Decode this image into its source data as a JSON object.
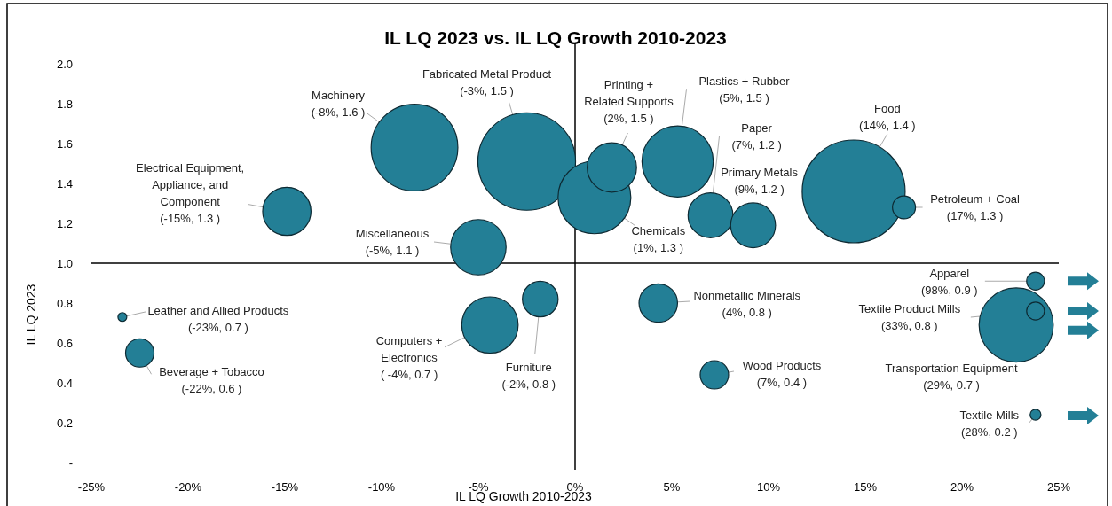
{
  "chart_data": {
    "type": "bubble",
    "title": "IL LQ 2023 vs. IL LQ Growth 2010-2023",
    "xlabel": "IL LQ Growth 2010-2023",
    "ylabel": "IL LQ 2023",
    "xlim": [
      -25,
      25
    ],
    "ylim": [
      0,
      2
    ],
    "xticks": [
      {
        "value": -25,
        "label": "-25%"
      },
      {
        "value": -20,
        "label": "-20%"
      },
      {
        "value": -15,
        "label": "-15%"
      },
      {
        "value": -10,
        "label": "-10%"
      },
      {
        "value": -5,
        "label": "-5%"
      },
      {
        "value": 0,
        "label": "0%"
      },
      {
        "value": 5,
        "label": "5%"
      },
      {
        "value": 10,
        "label": "10%"
      },
      {
        "value": 15,
        "label": "15%"
      },
      {
        "value": 20,
        "label": "20%"
      },
      {
        "value": 25,
        "label": "25%"
      }
    ],
    "yticks": [
      {
        "value": 0,
        "label": "-"
      },
      {
        "value": 0.2,
        "label": "0.2"
      },
      {
        "value": 0.4,
        "label": "0.4"
      },
      {
        "value": 0.6,
        "label": "0.6"
      },
      {
        "value": 0.8,
        "label": "0.8"
      },
      {
        "value": 1,
        "label": "1.0"
      },
      {
        "value": 1.2,
        "label": "1.2"
      },
      {
        "value": 1.4,
        "label": "1.4"
      },
      {
        "value": 1.6,
        "label": "1.6"
      },
      {
        "value": 1.8,
        "label": "1.8"
      },
      {
        "value": 2,
        "label": "2.0"
      }
    ],
    "grid": false,
    "series": [
      {
        "color": "#237f96",
        "x": [
          -23.4,
          -22.5,
          -14.9,
          -8.3,
          -2.5,
          -5.0,
          -4.4,
          -1.8,
          1.0,
          1.9,
          5.3,
          7.0,
          9.2,
          14.4,
          17.0,
          4.3,
          7.2,
          23.8,
          23.8,
          22.8,
          23.8
        ],
        "values": [
          0.73,
          0.55,
          1.26,
          1.58,
          1.51,
          1.08,
          0.69,
          0.82,
          1.33,
          1.48,
          1.51,
          1.24,
          1.19,
          1.36,
          1.28,
          0.8,
          0.44,
          0.91,
          0.76,
          0.69,
          0.24
        ],
        "sizes": [
          0.0074,
          0.076,
          0.22,
          0.71,
          0.9,
          0.29,
          0.3,
          0.12,
          0.5,
          0.23,
          0.48,
          0.19,
          0.19,
          1,
          0.05,
          0.14,
          0.076,
          0.03,
          0.03,
          0.52,
          0.011
        ]
      }
    ],
    "ref_lines": [
      {
        "axis": "x",
        "value": 0,
        "color": "#000000"
      },
      {
        "axis": "y",
        "value": 1,
        "color": "#000000"
      }
    ],
    "annotations": [
      {
        "text": "Leather and Allied Products\n(-23%, 0.7 )",
        "x": -23.4,
        "y": 0.73
      },
      {
        "text": "Beverage + Tobacco\n(-22%, 0.6 )",
        "x": -22.5,
        "y": 0.55
      },
      {
        "text": "Electrical Equipment,\nAppliance, and\nComponent\n(-15%, 1.3 )",
        "x": -14.9,
        "y": 1.26
      },
      {
        "text": "Machinery\n(-8%, 1.6 )",
        "x": -8.3,
        "y": 1.58
      },
      {
        "text": "Fabricated Metal Product\n(-3%, 1.5 )",
        "x": -2.5,
        "y": 1.51
      },
      {
        "text": "Miscellaneous\n(-5%, 1.1 )",
        "x": -5.0,
        "y": 1.08
      },
      {
        "text": "Computers +\nElectronics\n( -4%, 0.7 )",
        "x": -4.4,
        "y": 0.69
      },
      {
        "text": "Furniture\n(-2%, 0.8 )",
        "x": -1.8,
        "y": 0.82
      },
      {
        "text": "Chemicals\n(1%, 1.3 )",
        "x": 1.0,
        "y": 1.33
      },
      {
        "text": "Printing +\nRelated Supports\n(2%, 1.5 )",
        "x": 1.9,
        "y": 1.48
      },
      {
        "text": "Plastics + Rubber\n(5%, 1.5 )",
        "x": 5.3,
        "y": 1.51
      },
      {
        "text": "Paper\n(7%, 1.2 )",
        "x": 7.0,
        "y": 1.24
      },
      {
        "text": "Primary Metals\n(9%, 1.2 )",
        "x": 9.2,
        "y": 1.19
      },
      {
        "text": "Food\n(14%, 1.4 )",
        "x": 14.4,
        "y": 1.36
      },
      {
        "text": "Petroleum + Coal\n(17%, 1.3 )",
        "x": 17.0,
        "y": 1.28
      },
      {
        "text": "Nonmetallic Minerals\n(4%, 0.8 )",
        "x": 4.3,
        "y": 0.8
      },
      {
        "text": "Wood Products\n(7%, 0.4 )",
        "x": 7.2,
        "y": 0.44
      },
      {
        "text": "Apparel\n(98%, 0.9 )",
        "x": 23.8,
        "y": 0.91
      },
      {
        "text": "Textile Product Mills\n(33%, 0.8 )",
        "x": 23.8,
        "y": 0.76
      },
      {
        "text": "Transportation Equipment\n(29%, 0.7 )",
        "x": 22.8,
        "y": 0.69
      },
      {
        "text": "Textile Mills\n(28%, 0.2 )",
        "x": 23.8,
        "y": 0.24
      }
    ]
  }
}
